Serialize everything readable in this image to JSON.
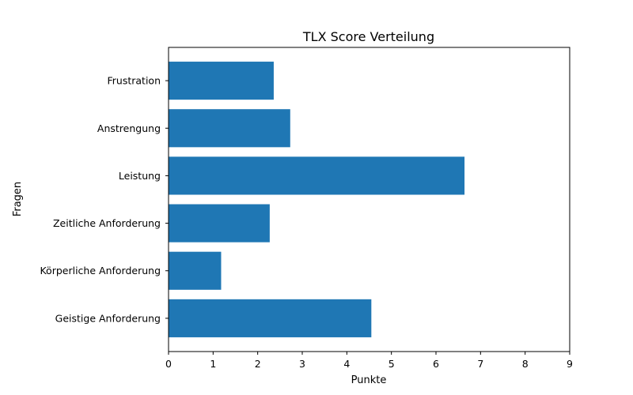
{
  "chart_data": {
    "type": "bar",
    "orientation": "horizontal",
    "title": "TLX Score Verteilung",
    "xlabel": "Punkte",
    "ylabel": "Fragen",
    "categories": [
      "Geistige Anforderung",
      "Körperliche Anforderung",
      "Zeitliche Anforderung",
      "Leistung",
      "Anstrengung",
      "Frustration"
    ],
    "values": [
      4.55,
      1.18,
      2.27,
      6.64,
      2.73,
      2.36
    ],
    "xlim": [
      0,
      9
    ],
    "xticks": [
      "0",
      "1",
      "2",
      "3",
      "4",
      "5",
      "6",
      "7",
      "8",
      "9"
    ],
    "grid": false,
    "legend": "none",
    "bar_color": "#1f77b4"
  }
}
